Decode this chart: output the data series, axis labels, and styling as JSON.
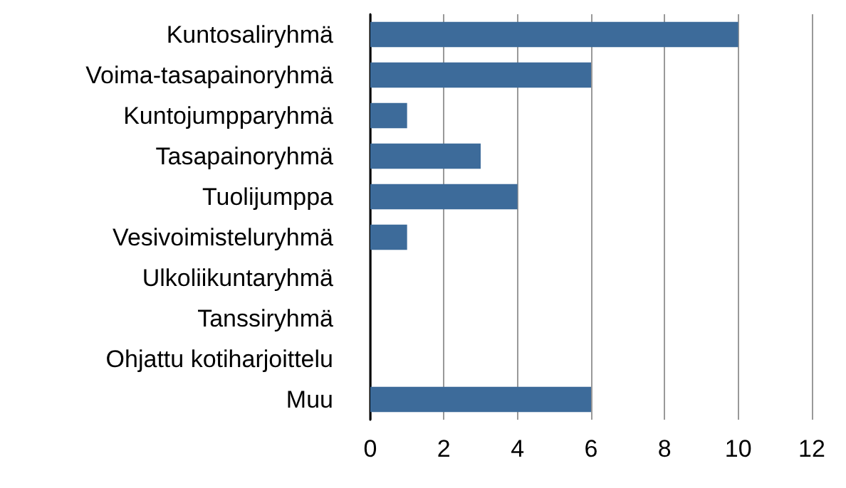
{
  "chart_data": {
    "type": "bar",
    "orientation": "horizontal",
    "categories": [
      "Kuntosaliryhmä",
      "Voima-tasapainoryhmä",
      "Kuntojumpparyhmä",
      "Tasapainoryhmä",
      "Tuolijumppa",
      "Vesivoimisteluryhmä",
      "Ulkoliikuntaryhmä",
      "Tanssiryhmä",
      "Ohjattu kotiharjoittelu",
      "Muu"
    ],
    "values": [
      10,
      6,
      1,
      3,
      4,
      1,
      0,
      0,
      0,
      6
    ],
    "color": "#3d6b9a",
    "xlim": [
      0,
      12
    ],
    "xticks": [
      0,
      2,
      4,
      6,
      8,
      10,
      12
    ],
    "grid": "x"
  }
}
